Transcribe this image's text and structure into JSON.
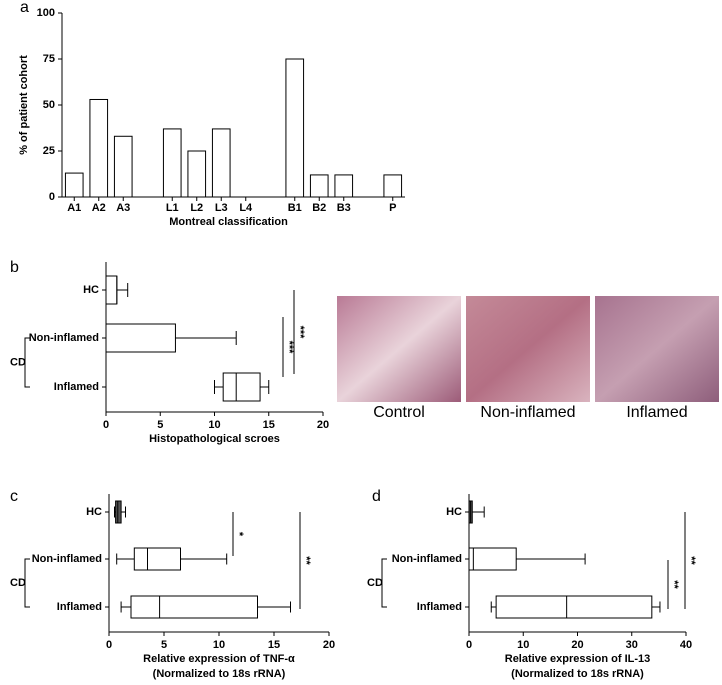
{
  "chart_data": [
    {
      "type": "bar",
      "panel": "a",
      "ylabel": "% of patient cohort",
      "xlabel": "Montreal classification",
      "categories": [
        "A1",
        "A2",
        "A3",
        null,
        "L1",
        "L2",
        "L3",
        "L4",
        null,
        "B1",
        "B2",
        "B3",
        null,
        "P"
      ],
      "values": [
        13,
        53,
        33,
        null,
        37,
        25,
        37,
        0,
        null,
        75,
        12,
        12,
        null,
        12
      ],
      "color": "#ffffff",
      "ylim": [
        0,
        100
      ],
      "yticks": [
        0,
        25,
        50,
        75,
        100
      ]
    },
    {
      "type": "box",
      "panel": "b",
      "xlabel": "Histopathological scroes",
      "group_label": "CD",
      "categories": [
        "HC",
        "Non-inflamed",
        "Inflamed"
      ],
      "boxes": [
        {
          "min": 0,
          "q1": 0,
          "median": 1,
          "q3": 1,
          "max": 2
        },
        {
          "min": 0,
          "q1": 0,
          "median": 0,
          "q3": 6.4,
          "max": 12
        },
        {
          "min": 10,
          "q1": 10.8,
          "median": 12,
          "q3": 14.2,
          "max": 15
        }
      ],
      "colors": [
        "#ffffff",
        "#ffffff",
        "#ffffff"
      ],
      "xlim": [
        0,
        20
      ],
      "xticks": [
        0,
        5,
        10,
        15,
        20
      ],
      "annotations": [
        {
          "text": "***"
        },
        {
          "text": "***"
        }
      ]
    },
    {
      "type": "box",
      "panel": "c",
      "xlabel": "Relative expression of TNF-α",
      "xlabel_note": "(Normalized to 18s rRNA)",
      "group_label": "CD",
      "categories": [
        "HC",
        "Non-inflamed",
        "Inflamed"
      ],
      "boxes": [
        {
          "min": 0.5,
          "q1": 0.6,
          "median": 0.8,
          "q3": 1.1,
          "max": 1.5
        },
        {
          "min": 0.7,
          "q1": 2.3,
          "median": 3.5,
          "q3": 6.5,
          "max": 10.7
        },
        {
          "min": 1.1,
          "q1": 2.0,
          "median": 4.6,
          "q3": 13.5,
          "max": 16.5
        }
      ],
      "colors": [
        "#555555",
        "#ffffff",
        "#ffffff"
      ],
      "xlim": [
        0,
        20
      ],
      "xticks": [
        0,
        5,
        10,
        15,
        20
      ],
      "annotations": [
        {
          "text": "*"
        },
        {
          "text": "**"
        }
      ]
    },
    {
      "type": "box",
      "panel": "d",
      "xlabel": "Relative expression of IL-13",
      "xlabel_note": "(Normalized to 18s rRNA)",
      "group_label": "CD",
      "categories": [
        "HC",
        "Non-inflamed",
        "Inflamed"
      ],
      "boxes": [
        {
          "min": 0,
          "q1": 0,
          "median": 0.3,
          "q3": 0.6,
          "max": 2.8
        },
        {
          "min": 0,
          "q1": 0,
          "median": 0.8,
          "q3": 8.7,
          "max": 21.4
        },
        {
          "min": 4.1,
          "q1": 5,
          "median": 18,
          "q3": 33.7,
          "max": 35.2
        }
      ],
      "colors": [
        "#555555",
        "#ffffff",
        "#ffffff"
      ],
      "xlim": [
        0,
        40
      ],
      "xticks": [
        0,
        10,
        20,
        30,
        40
      ],
      "annotations": [
        {
          "text": "**"
        },
        {
          "text": "**"
        }
      ]
    }
  ],
  "micrographs": [
    "Control",
    "Non-inflamed",
    "Inflamed"
  ]
}
